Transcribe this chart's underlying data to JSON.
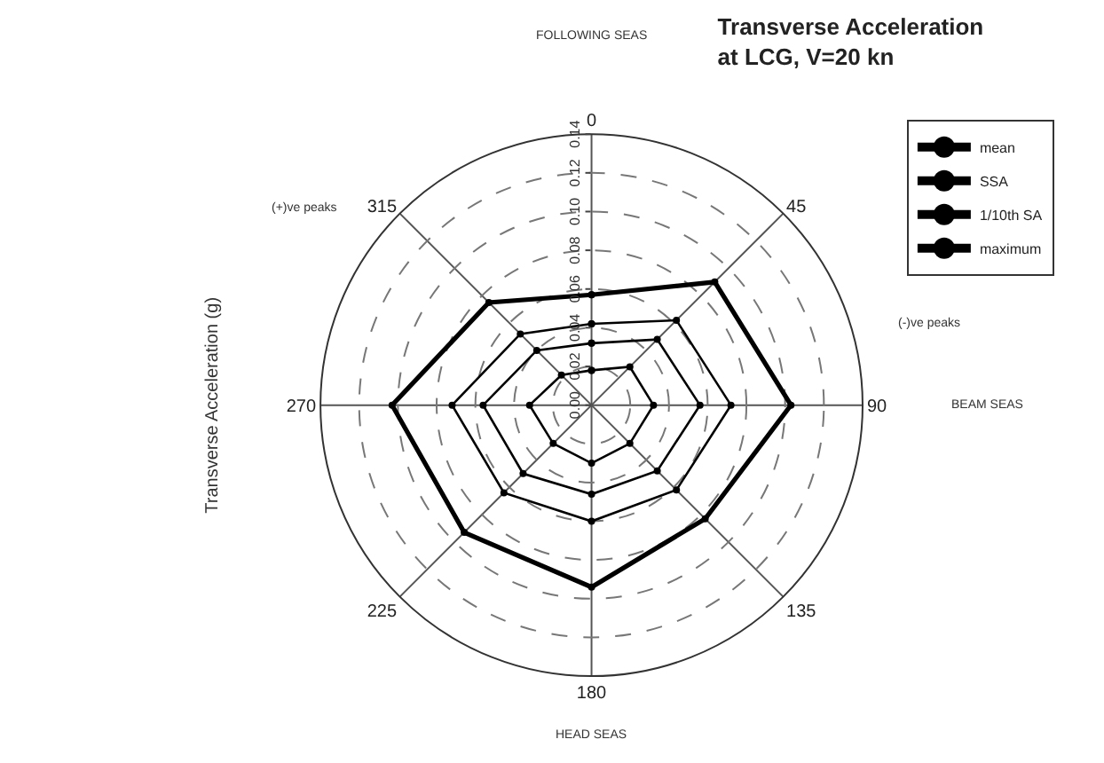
{
  "chart_data": {
    "type": "radar",
    "title": "Transverse Acceleration\nat LCG, V=20 kn",
    "ylabel": "Transverse Acceleration (g)",
    "categories": [
      "0",
      "45",
      "90",
      "135",
      "180",
      "225",
      "270",
      "315"
    ],
    "series": [
      {
        "name": "mean",
        "color": "#000000",
        "values": [
          0.018,
          0.028,
          0.032,
          0.028,
          0.03,
          0.028,
          0.032,
          0.022
        ]
      },
      {
        "name": "SSA",
        "color": "#000000",
        "values": [
          0.032,
          0.048,
          0.056,
          0.048,
          0.046,
          0.05,
          0.056,
          0.04
        ]
      },
      {
        "name": "1/10th SA",
        "color": "#000000",
        "values": [
          0.042,
          0.062,
          0.072,
          0.062,
          0.06,
          0.064,
          0.072,
          0.052
        ]
      },
      {
        "name": "maximum",
        "color": "#000000",
        "values": [
          0.057,
          0.09,
          0.103,
          0.083,
          0.094,
          0.093,
          0.103,
          0.075
        ]
      }
    ],
    "ylim": [
      0,
      0.14
    ],
    "yticks": [
      {
        "value": 0,
        "label": "0.00"
      },
      0.02,
      0.04,
      0.06,
      0.08,
      {
        "value": 0.1,
        "label": "0.10"
      },
      0.12,
      0.14
    ],
    "annotations": [
      "FOLLOWING SEAS",
      "BEAM SEAS",
      "HEAD SEAS",
      "(+)ve peaks",
      "(-)ve peaks"
    ],
    "grid": true,
    "legend": "top right",
    "marker": "circle",
    "line_style": "solid"
  }
}
